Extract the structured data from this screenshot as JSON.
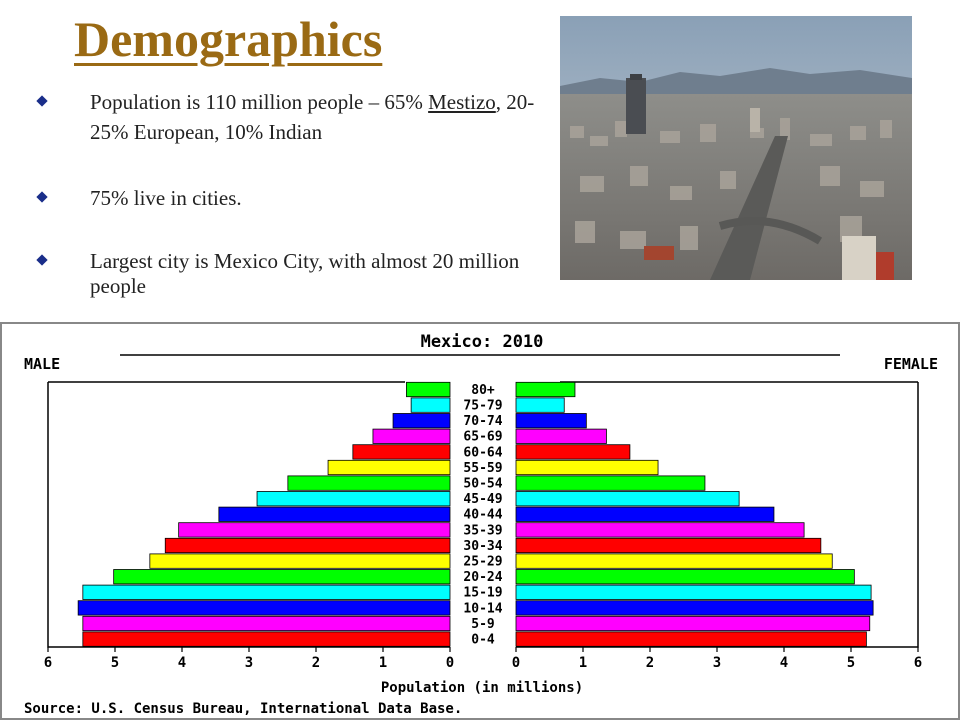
{
  "slide": {
    "title": "Demographics",
    "bullets": [
      {
        "parts": [
          {
            "text": "Population is 110 million people – 65% "
          },
          {
            "text": "Mestizo",
            "underline": true
          },
          {
            "text": ", 20-25% European, 10% Indian"
          }
        ]
      },
      {
        "parts": [
          {
            "text": "75% live in cities."
          }
        ]
      },
      {
        "parts": [
          {
            "text": "Largest city is Mexico City, with almost 20 million people"
          }
        ]
      }
    ],
    "bullet_color": "#1a2e8a",
    "title_color": "#9a6a14"
  },
  "photo": {
    "subject": "aerial view of Mexico City skyline with mountains"
  },
  "chart_data": {
    "type": "bar",
    "title": "Mexico: 2010",
    "left_label": "MALE",
    "right_label": "FEMALE",
    "xlabel": "Population (in millions)",
    "source": "Source: U.S. Census Bureau, International Data Base.",
    "categories": [
      "80+",
      "75-79",
      "70-74",
      "65-69",
      "60-64",
      "55-59",
      "50-54",
      "45-49",
      "40-44",
      "35-39",
      "30-34",
      "25-29",
      "20-24",
      "15-19",
      "10-14",
      "5-9",
      "0-4"
    ],
    "series": [
      {
        "name": "MALE",
        "values": [
          0.65,
          0.58,
          0.85,
          1.15,
          1.45,
          1.82,
          2.42,
          2.88,
          3.45,
          4.05,
          4.25,
          4.48,
          5.02,
          5.48,
          5.55,
          5.48,
          5.48
        ]
      },
      {
        "name": "FEMALE",
        "values": [
          0.88,
          0.72,
          1.05,
          1.35,
          1.7,
          2.12,
          2.82,
          3.33,
          3.85,
          4.3,
          4.55,
          4.72,
          5.05,
          5.3,
          5.33,
          5.28,
          5.23
        ]
      }
    ],
    "bar_colors": [
      "#00ff00",
      "#00ffff",
      "#0000ff",
      "#ff00ff",
      "#ff0000",
      "#ffff00"
    ],
    "xlim": [
      0,
      6
    ],
    "ticks": [
      "0",
      "1",
      "2",
      "3",
      "4",
      "5",
      "6"
    ],
    "grid": false
  }
}
